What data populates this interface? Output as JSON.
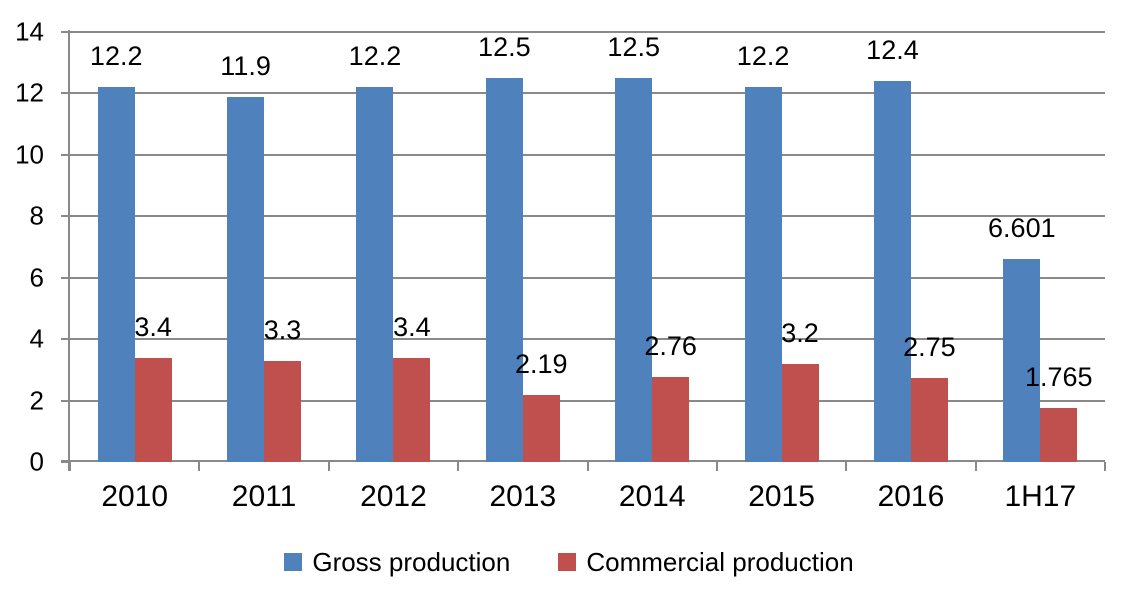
{
  "chart_data": {
    "type": "bar",
    "categories": [
      "2010",
      "2011",
      "2012",
      "2013",
      "2014",
      "2015",
      "2016",
      "1H17"
    ],
    "series": [
      {
        "name": "Gross production",
        "color": "#4F81BD",
        "values": [
          12.2,
          11.9,
          12.2,
          12.5,
          12.5,
          12.2,
          12.4,
          6.601
        ],
        "labels": [
          "12.2",
          "11.9",
          "12.2",
          "12.5",
          "12.5",
          "12.2",
          "12.4",
          "6.601"
        ]
      },
      {
        "name": "Commercial production",
        "color": "#C0504D",
        "values": [
          3.4,
          3.3,
          3.4,
          2.19,
          2.76,
          3.2,
          2.75,
          1.765
        ],
        "labels": [
          "3.4",
          "3.3",
          "3.4",
          "2.19",
          "2.76",
          "3.2",
          "2.75",
          "1.765"
        ]
      }
    ],
    "title": "",
    "xlabel": "",
    "ylabel": "",
    "ylim": [
      0,
      14
    ],
    "yticks": [
      0,
      2,
      4,
      6,
      8,
      10,
      12,
      14
    ],
    "grid": true,
    "legend_position": "bottom",
    "colors": {
      "gridline": "#898989",
      "axis": "#898989",
      "text": "#000000",
      "background": "#FFFFFF"
    }
  }
}
